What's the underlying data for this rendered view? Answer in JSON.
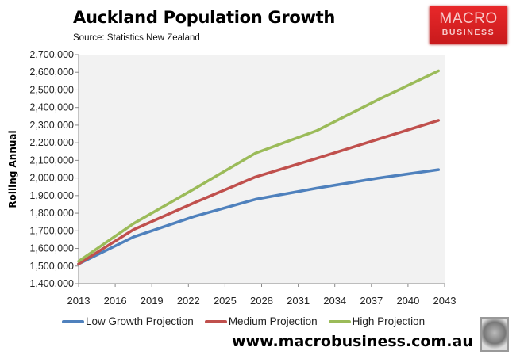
{
  "header": {
    "title": "Auckland Population Growth",
    "source": "Source: Statistics New Zealand"
  },
  "logo": {
    "line1": "MACRO",
    "line2": "BUSINESS"
  },
  "footer": {
    "url": "www.macrobusiness.com.au"
  },
  "chart_data": {
    "type": "line",
    "title": "Auckland Population Growth",
    "ylabel": "Rolling Annual",
    "xlabel": "",
    "xlim": [
      2013,
      2043
    ],
    "ylim": [
      1400000,
      2700000
    ],
    "xticks": [
      "2013",
      "2016",
      "2019",
      "2022",
      "2025",
      "2028",
      "2031",
      "2034",
      "2037",
      "2040",
      "2043"
    ],
    "yticks": [
      "1,400,000",
      "1,500,000",
      "1,600,000",
      "1,700,000",
      "1,800,000",
      "1,900,000",
      "2,000,000",
      "2,100,000",
      "2,200,000",
      "2,300,000",
      "2,400,000",
      "2,500,000",
      "2,600,000",
      "2,700,000"
    ],
    "grid": false,
    "legend": "bottom",
    "x": [
      2013,
      2017.5,
      2022.5,
      2027.5,
      2032.5,
      2037.5,
      2042.5
    ],
    "series": [
      {
        "name": "Low Growth Projection",
        "color": "#4f81bd",
        "values": [
          1512000,
          1665000,
          1782000,
          1879000,
          1942000,
          1999000,
          2047000
        ]
      },
      {
        "name": "Medium Projection",
        "color": "#c0504d",
        "values": [
          1512000,
          1707000,
          1860000,
          2006000,
          2111000,
          2219000,
          2327000
        ]
      },
      {
        "name": "High Projection",
        "color": "#9bbb59",
        "values": [
          1527000,
          1741000,
          1939000,
          2141000,
          2268000,
          2443000,
          2608000
        ]
      }
    ],
    "plot_background": "#f2f2f2"
  }
}
